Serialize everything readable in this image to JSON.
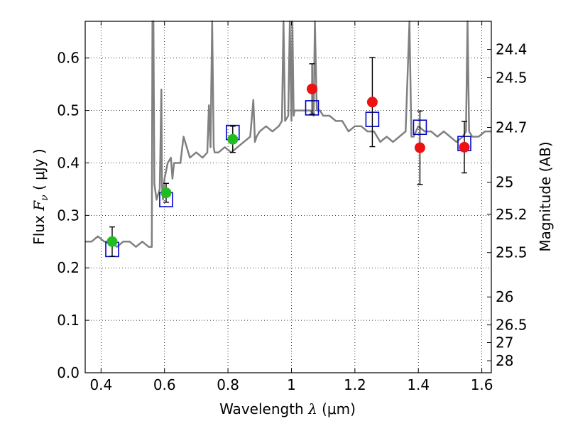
{
  "chart_data": {
    "type": "scatter",
    "xlabel_prefix": "Wavelength",
    "xlabel_symbol": "λ",
    "xlabel_unit": "(μm)",
    "ylabel_prefix": "Flux",
    "ylabel_symbol": "F",
    "ylabel_subscript": "ν",
    "ylabel_unit": "( μJy )",
    "ylabel_right": "Magnitude (AB)",
    "xlim": [
      0.35,
      1.63
    ],
    "ylim": [
      0.0,
      0.67
    ],
    "grid": true,
    "x_ticks": [
      0.4,
      0.6,
      0.8,
      1.0,
      1.2,
      1.4,
      1.6
    ],
    "x_tick_labels": [
      "0.4",
      "0.6",
      "0.8",
      "1",
      "1.2",
      "1.4",
      "1.6"
    ],
    "y_ticks": [
      0.0,
      0.1,
      0.2,
      0.3,
      0.4,
      0.5,
      0.6
    ],
    "y_tick_labels": [
      "0.0",
      "0.1",
      "0.2",
      "0.3",
      "0.4",
      "0.5",
      "0.6"
    ],
    "right_ticks": [
      {
        "label": "24.4",
        "flux": 0.6165
      },
      {
        "label": "24.5",
        "flux": 0.5623
      },
      {
        "label": "24.7",
        "flux": 0.4677
      },
      {
        "label": "25",
        "flux": 0.3631
      },
      {
        "label": "25.2",
        "flux": 0.302
      },
      {
        "label": "25.5",
        "flux": 0.2291
      },
      {
        "label": "26",
        "flux": 0.1445
      },
      {
        "label": "26.5",
        "flux": 0.0912
      },
      {
        "label": "27",
        "flux": 0.0575
      },
      {
        "label": "28",
        "flux": 0.0229
      }
    ],
    "series": [
      {
        "kind": "line",
        "color": "#808080",
        "x": [
          0.35,
          0.37,
          0.39,
          0.41,
          0.43,
          0.45,
          0.47,
          0.49,
          0.51,
          0.53,
          0.55,
          0.56,
          0.562,
          0.565,
          0.568,
          0.575,
          0.585,
          0.59,
          0.592,
          0.595,
          0.6,
          0.61,
          0.62,
          0.625,
          0.63,
          0.64,
          0.65,
          0.66,
          0.68,
          0.7,
          0.72,
          0.735,
          0.74,
          0.745,
          0.75,
          0.755,
          0.758,
          0.762,
          0.77,
          0.79,
          0.81,
          0.83,
          0.85,
          0.87,
          0.88,
          0.885,
          0.89,
          0.9,
          0.92,
          0.94,
          0.96,
          0.97,
          0.975,
          0.98,
          0.99,
          0.995,
          1.0,
          1.003,
          1.007,
          1.01,
          1.02,
          1.04,
          1.06,
          1.07,
          1.074,
          1.08,
          1.09,
          1.1,
          1.12,
          1.14,
          1.16,
          1.18,
          1.2,
          1.22,
          1.24,
          1.26,
          1.28,
          1.3,
          1.32,
          1.34,
          1.36,
          1.372,
          1.378,
          1.385,
          1.4,
          1.42,
          1.44,
          1.46,
          1.48,
          1.5,
          1.52,
          1.54,
          1.55,
          1.555,
          1.56,
          1.57,
          1.59,
          1.61,
          1.63
        ],
        "y": [
          0.25,
          0.25,
          0.26,
          0.25,
          0.25,
          0.24,
          0.25,
          0.25,
          0.24,
          0.25,
          0.24,
          0.24,
          0.67,
          0.67,
          0.36,
          0.33,
          0.35,
          0.54,
          0.36,
          0.33,
          0.37,
          0.4,
          0.41,
          0.37,
          0.4,
          0.4,
          0.4,
          0.45,
          0.41,
          0.42,
          0.41,
          0.42,
          0.51,
          0.43,
          0.67,
          0.43,
          0.42,
          0.42,
          0.42,
          0.43,
          0.42,
          0.43,
          0.44,
          0.45,
          0.52,
          0.44,
          0.45,
          0.46,
          0.47,
          0.46,
          0.47,
          0.48,
          0.67,
          0.48,
          0.49,
          0.67,
          0.48,
          0.67,
          0.49,
          0.5,
          0.5,
          0.5,
          0.5,
          0.49,
          0.67,
          0.5,
          0.5,
          0.49,
          0.49,
          0.48,
          0.48,
          0.46,
          0.47,
          0.47,
          0.46,
          0.46,
          0.44,
          0.45,
          0.44,
          0.45,
          0.46,
          0.67,
          0.45,
          0.45,
          0.47,
          0.46,
          0.46,
          0.45,
          0.46,
          0.45,
          0.44,
          0.45,
          0.46,
          0.67,
          0.46,
          0.45,
          0.45,
          0.46,
          0.46
        ]
      },
      {
        "kind": "model-photometry",
        "marker": "square",
        "color": "#0000cc",
        "x": [
          0.435,
          0.605,
          0.815,
          1.065,
          1.255,
          1.405,
          1.545
        ],
        "y": [
          0.235,
          0.33,
          0.458,
          0.505,
          0.483,
          0.468,
          0.437
        ]
      },
      {
        "kind": "observed",
        "marker": "circle",
        "color": "#22bb22",
        "x": [
          0.435,
          0.605,
          0.815
        ],
        "y": [
          0.25,
          0.343,
          0.445
        ],
        "yerr": [
          0.028,
          0.018,
          0.025
        ]
      },
      {
        "kind": "observed",
        "marker": "circle",
        "color": "#ee1111",
        "x": [
          1.065,
          1.255,
          1.405,
          1.545
        ],
        "y": [
          0.541,
          0.516,
          0.429,
          0.43
        ],
        "yerr": [
          0.048,
          0.085,
          0.07,
          0.049
        ]
      }
    ]
  }
}
